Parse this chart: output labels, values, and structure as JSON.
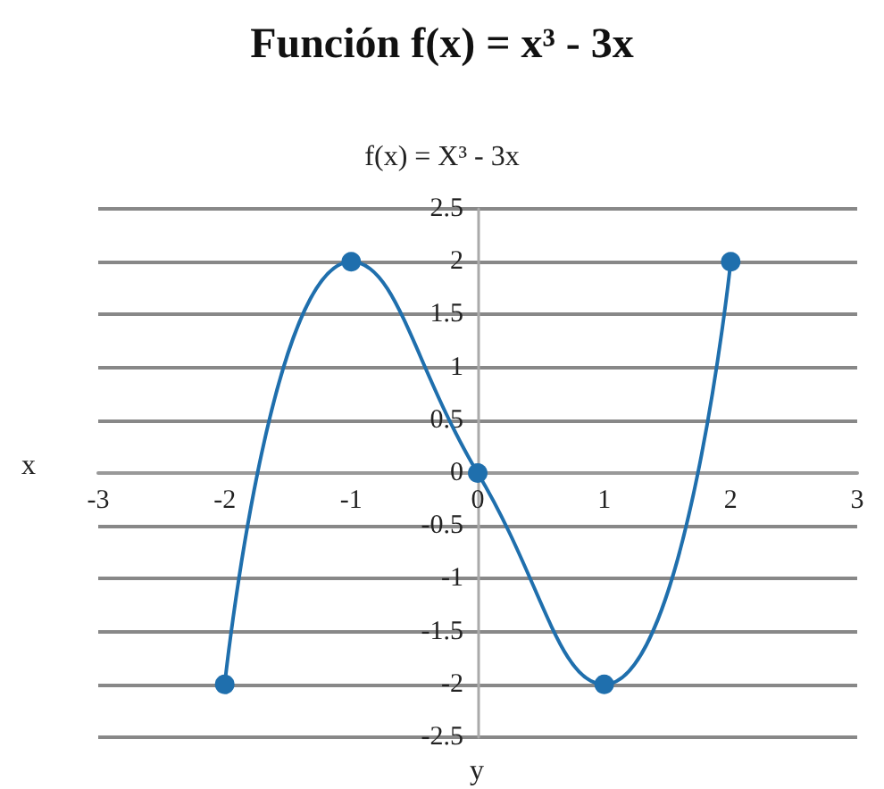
{
  "chart_data": {
    "type": "line",
    "title": "Función f(x) = x³ - 3x",
    "subtitle": "f(x) = X³ - 3x",
    "xlabel": "y",
    "ylabel": "x",
    "x": [
      -2,
      -1,
      0,
      1,
      2
    ],
    "series": [
      {
        "color": "#1f6fad",
        "values": [
          -2,
          2,
          0,
          -2,
          2
        ]
      }
    ],
    "xlim": [
      -3,
      3
    ],
    "xticks": [
      -3,
      -2,
      -1,
      0,
      1,
      2,
      3
    ],
    "ylim": [
      -2.5,
      2.5
    ],
    "yticks": [
      -2.5,
      -2,
      -1.5,
      -1,
      -0.5,
      0,
      0.5,
      1,
      1.5,
      2,
      2.5
    ],
    "grid": "y",
    "marker": "circle",
    "line_style": "solid"
  }
}
